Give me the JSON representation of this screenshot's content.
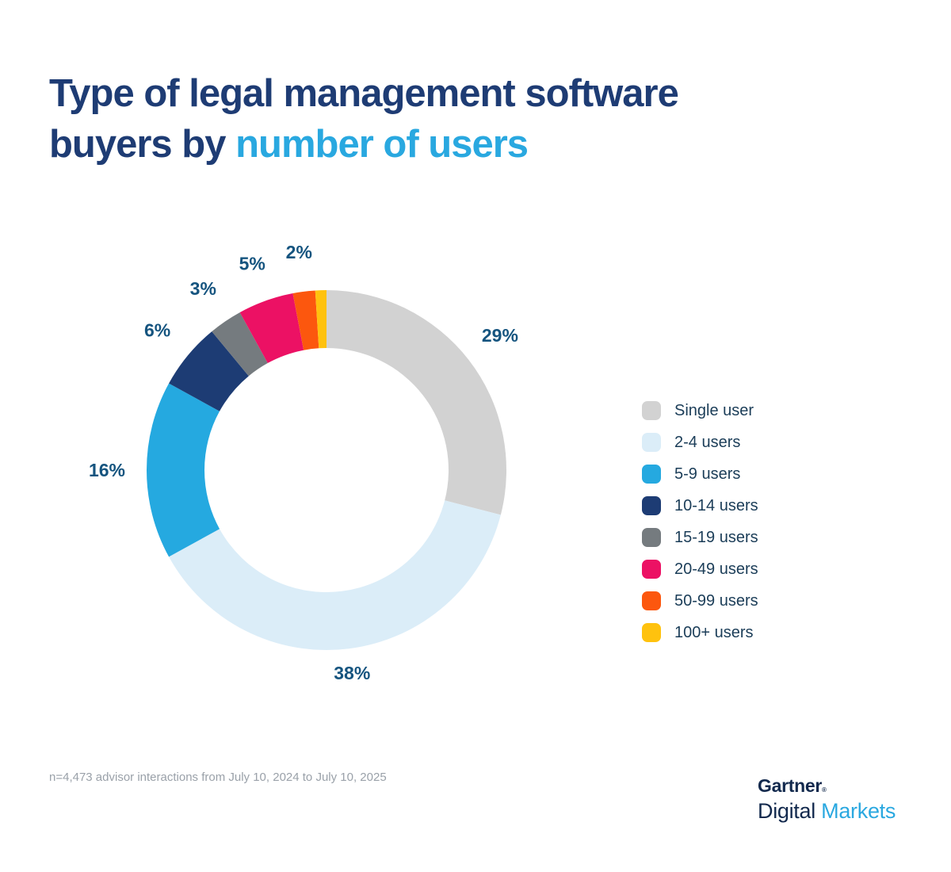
{
  "page": {
    "title": {
      "line1": "Type of legal management software",
      "line2_prefix": "buyers by ",
      "line2_highlight": "number of users"
    },
    "footnote": "n=4,473 advisor interactions from July 10, 2024 to July 10, 2025",
    "logo": {
      "gartner": "Gartner",
      "reg_mark": "®",
      "digital": "Digital ",
      "markets": "Markets"
    },
    "colors": {
      "title_navy": "#1E3C74",
      "title_highlight_blue": "#29A8E0",
      "percent_label": "#15547F",
      "legend_text": "#1B3D58",
      "footnote_gray": "#9AA1A9",
      "logo_navy": "#12294D",
      "logo_blue": "#2AA8E0"
    }
  },
  "chart_data": {
    "type": "pie",
    "subtype": "donut",
    "title": "Type of legal management software buyers by number of users",
    "categories": [
      "Single user",
      "2-4 users",
      "5-9 users",
      "10-14 users",
      "15-19 users",
      "20-49 users",
      "50-99 users",
      "100+ users"
    ],
    "values": [
      29,
      38,
      16,
      6,
      3,
      5,
      2,
      1
    ],
    "colors": [
      "#D2D2D2",
      "#DBEDF8",
      "#25A9E0",
      "#1D3C74",
      "#757B7F",
      "#EC1164",
      "#FC570E",
      "#FFC20E"
    ],
    "data_labels": [
      "29%",
      "38%",
      "16%",
      "6%",
      "3%",
      "5%",
      "2%",
      ""
    ],
    "label_color": "#15547F",
    "legend_position": "right",
    "start_angle_deg": 0,
    "direction": "clockwise",
    "donut_hole_ratio": 0.68
  }
}
